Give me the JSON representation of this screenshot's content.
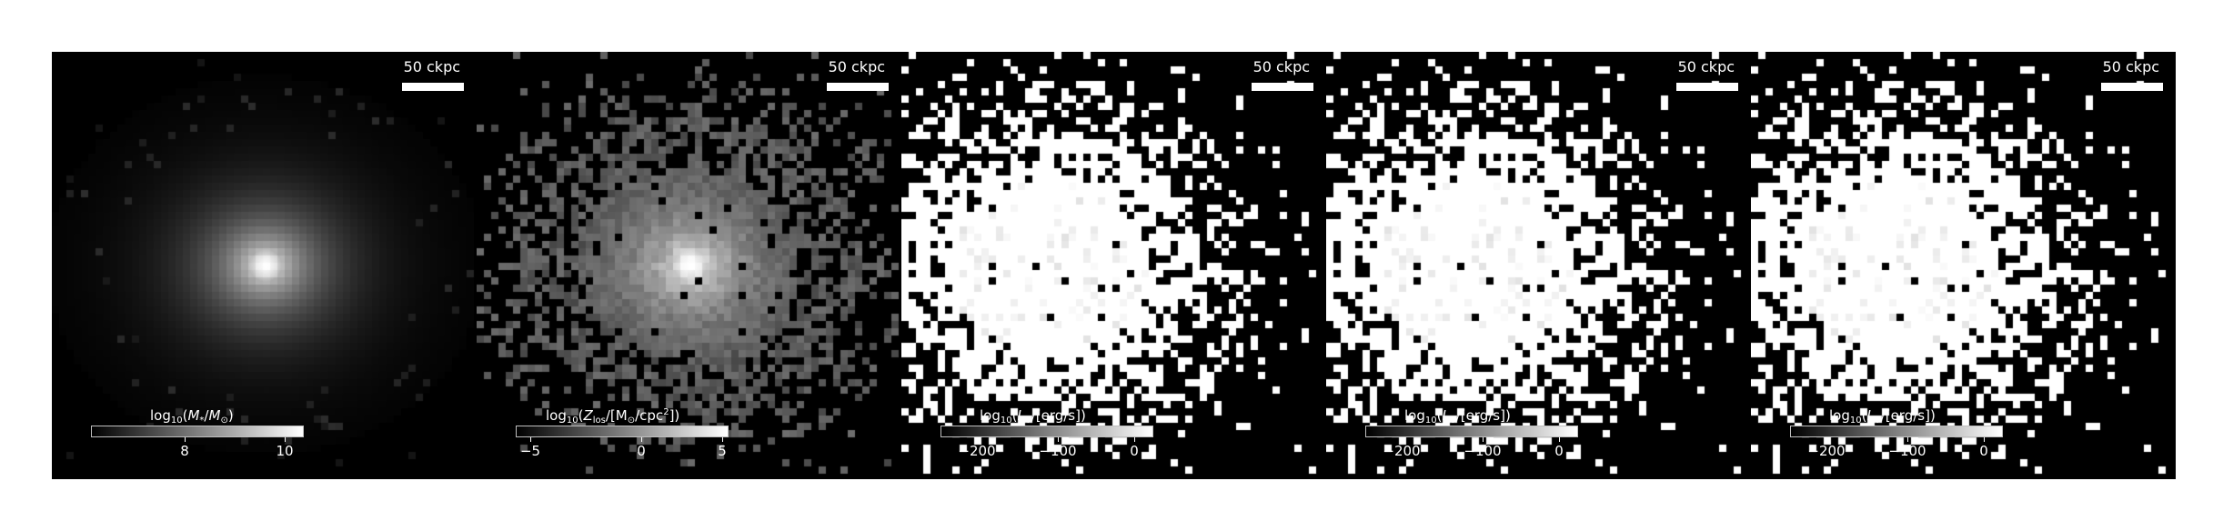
{
  "figure": {
    "panels": [
      {
        "id": "stellar-mass",
        "scale_bar": "50 ckpc",
        "colorbar": {
          "label_parts": [
            "log",
            "10",
            "(",
            "M",
            "*",
            "/",
            "M",
            "⊙",
            ")"
          ],
          "label_plain": "log10(M*/M⊙)",
          "ticks": [
            "8",
            "10"
          ],
          "tick_fracs": [
            0.44,
            0.91
          ]
        },
        "style": "smooth"
      },
      {
        "id": "metallicity",
        "scale_bar": "50 ckpc",
        "colorbar": {
          "label_plain": "log10(Zlos/[M⊙/cpc2])",
          "ticks": [
            "−5",
            "0",
            "5"
          ],
          "tick_fracs": [
            0.07,
            0.59,
            0.97
          ]
        },
        "style": "mid"
      },
      {
        "id": "luminosity-1",
        "scale_bar": "50 ckpc",
        "colorbar": {
          "label_plain": "log10(L_V/[erg/s])",
          "ticks": [
            "−200",
            "−100",
            "0"
          ],
          "tick_fracs": [
            0.17,
            0.55,
            0.91
          ]
        },
        "style": "binary"
      },
      {
        "id": "luminosity-2",
        "scale_bar": "50 ckpc",
        "colorbar": {
          "label_plain": "log10(L_V/[erg/s])",
          "ticks": [
            "−200",
            "−100",
            "0"
          ],
          "tick_fracs": [
            0.17,
            0.55,
            0.91
          ]
        },
        "style": "binary"
      },
      {
        "id": "luminosity-3",
        "scale_bar": "50 ckpc",
        "colorbar": {
          "label_plain": "log10(L_V/[erg/s])",
          "ticks": [
            "−200",
            "−100",
            "0"
          ],
          "tick_fracs": [
            0.17,
            0.55,
            0.91
          ]
        },
        "style": "binary"
      }
    ]
  }
}
